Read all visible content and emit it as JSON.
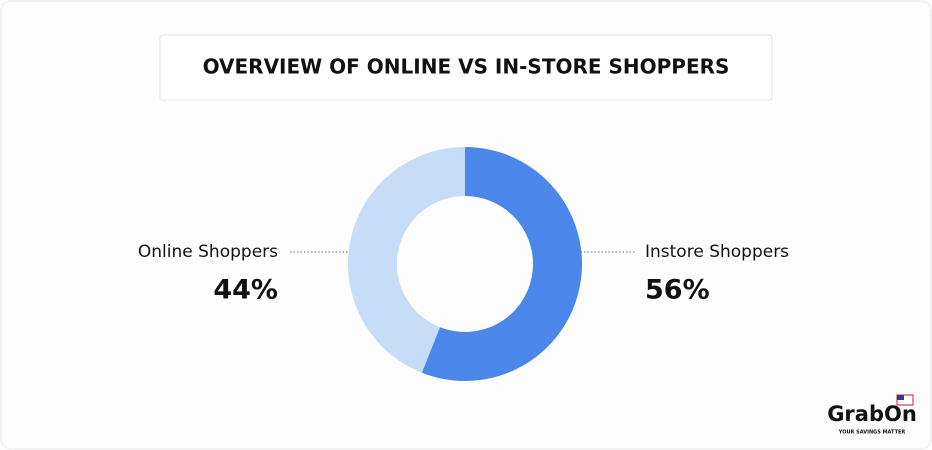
{
  "chart_data": {
    "type": "donut",
    "title": "OVERVIEW OF ONLINE VS IN-STORE SHOPPERS",
    "categories": [
      "Online Shoppers",
      "Instore Shoppers"
    ],
    "values": [
      44,
      56
    ],
    "value_labels": [
      "44%",
      "56%"
    ],
    "colors": [
      "#c7dcf6",
      "#4a87e8"
    ]
  },
  "brand": {
    "name": "GrabOn",
    "tagline": "YOUR SAVINGS MATTER"
  }
}
